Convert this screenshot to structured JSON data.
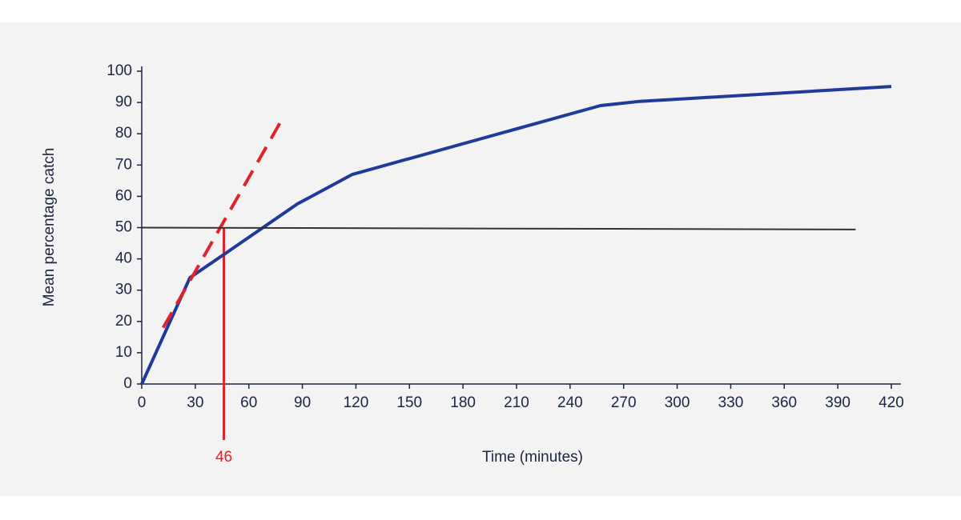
{
  "chart_data": {
    "type": "line",
    "x_label": "Time (minutes)",
    "y_label": "Mean percentage catch",
    "xlim": [
      0,
      420
    ],
    "ylim": [
      0,
      100
    ],
    "xticks": [
      0,
      30,
      60,
      90,
      120,
      150,
      180,
      210,
      240,
      270,
      300,
      330,
      360,
      390,
      420
    ],
    "yticks": [
      0,
      10,
      20,
      30,
      40,
      50,
      60,
      70,
      80,
      90,
      100
    ],
    "series": [
      {
        "color": "#1f3a9a",
        "x": [
          0,
          27,
          46,
          87,
          118,
          257,
          278,
          420
        ],
        "values": [
          0,
          34,
          41.4,
          57.5,
          67,
          89,
          90.3,
          95.1
        ]
      },
      {
        "color": "#e0232b",
        "dashed": true,
        "x": [
          12,
          79
        ],
        "values": [
          18,
          85
        ]
      },
      {
        "color": "#333333",
        "x": [
          0,
          400
        ],
        "values": [
          50,
          49.4
        ]
      }
    ],
    "annotation": {
      "x": 46,
      "y": 50,
      "color": "#e0232b"
    }
  }
}
